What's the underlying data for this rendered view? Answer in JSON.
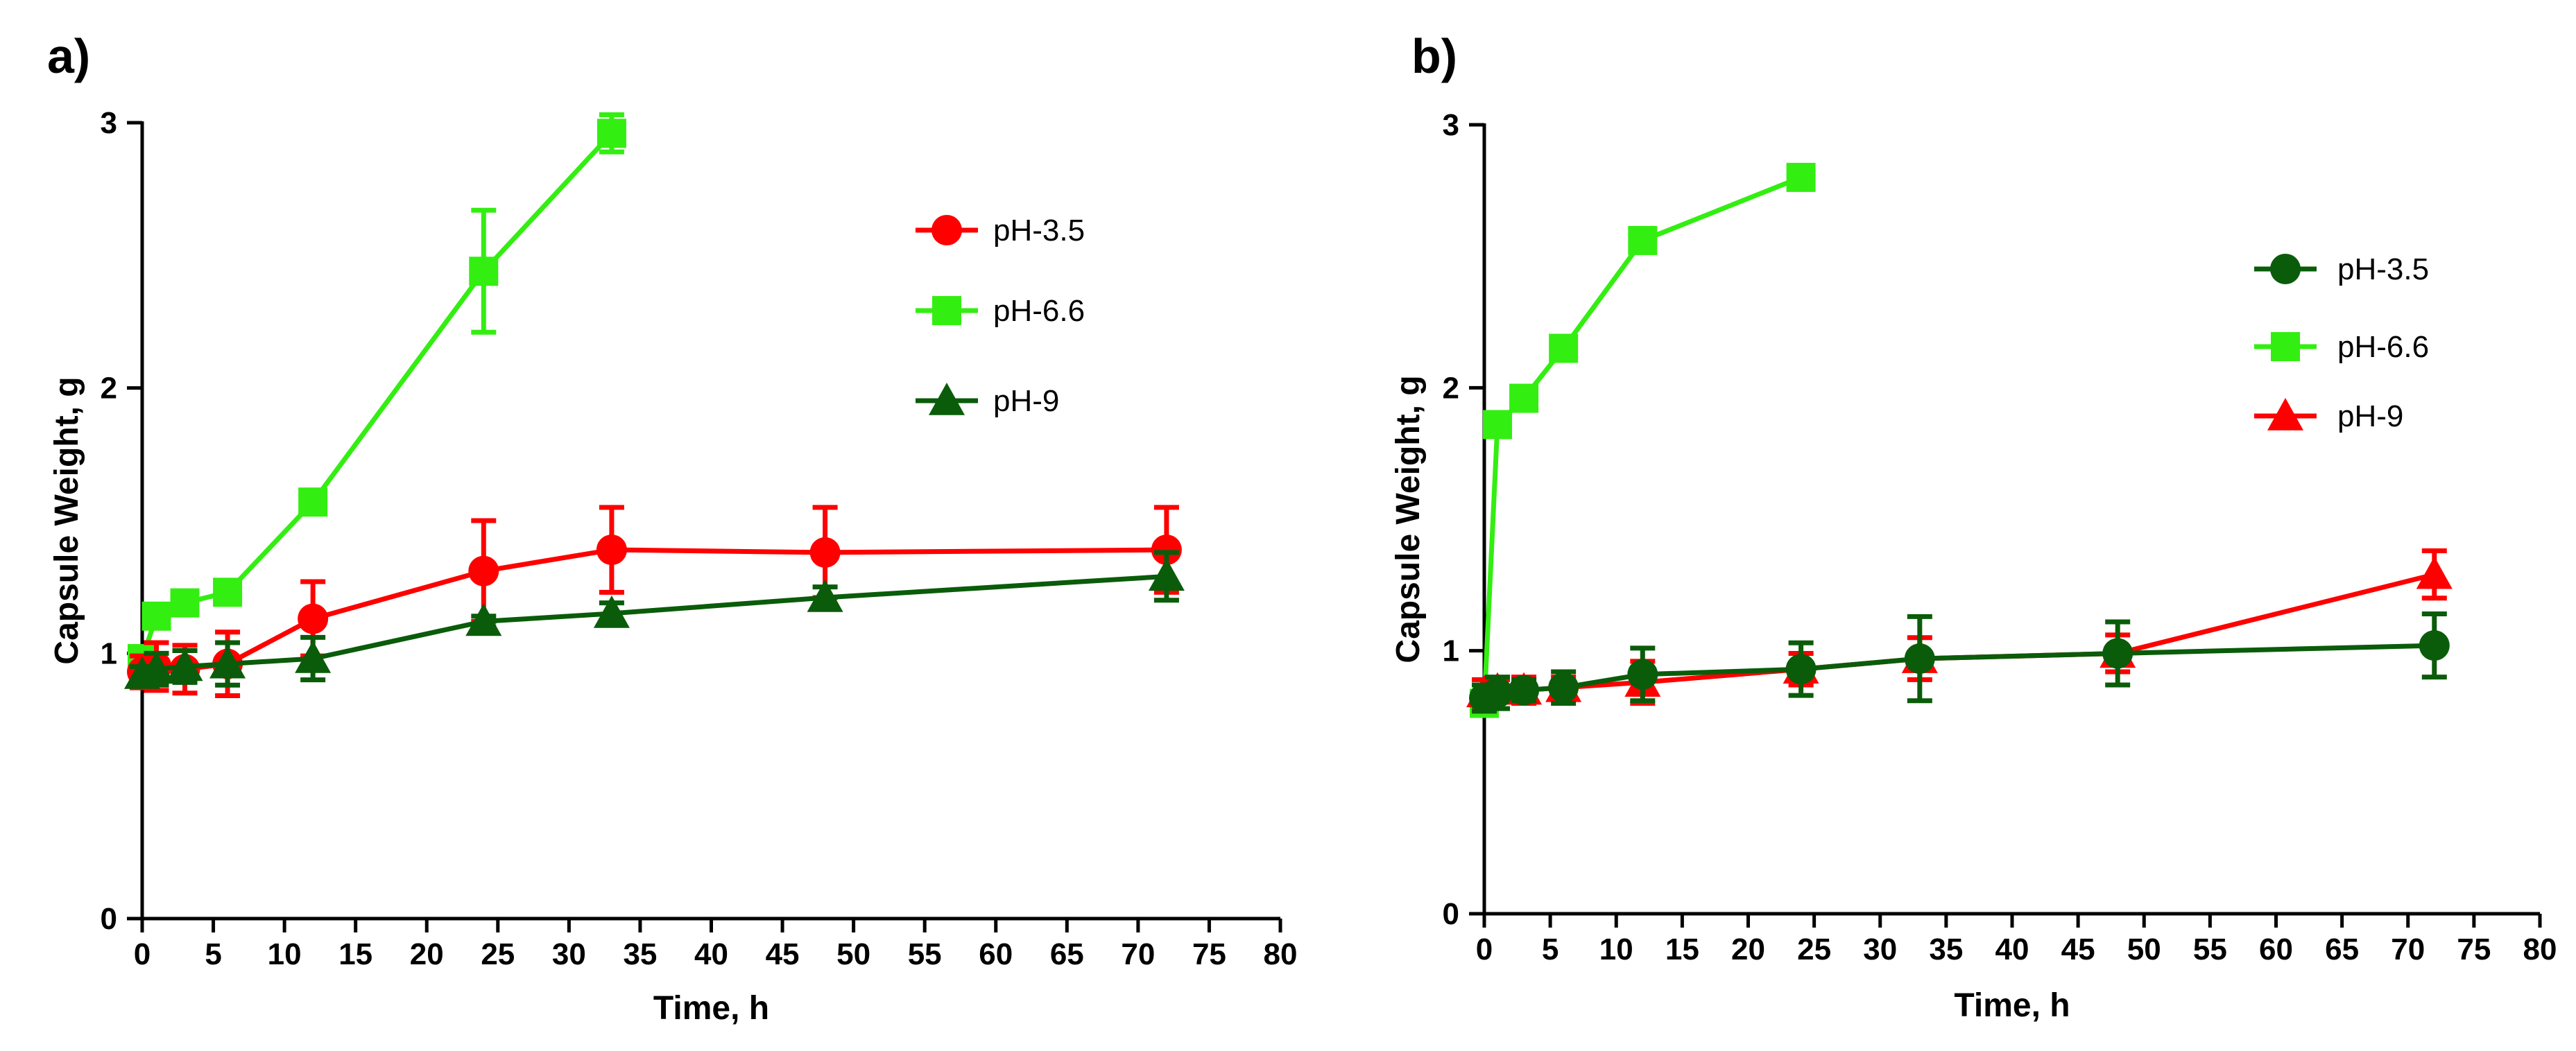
{
  "chart_data": [
    {
      "type": "line",
      "panel_label": "a)",
      "xlabel": "Time, h",
      "ylabel": "Capsule Weight, g",
      "xlim": [
        0,
        80
      ],
      "ylim": [
        0,
        3
      ],
      "x_ticks": [
        "0",
        "5",
        "10",
        "15",
        "20",
        "25",
        "30",
        "35",
        "40",
        "45",
        "50",
        "55",
        "60",
        "65",
        "70",
        "75",
        "80"
      ],
      "y_ticks": [
        "0",
        "1",
        "2",
        "3"
      ],
      "legend_position": "top-right",
      "series": [
        {
          "name": "pH-3.5",
          "color": "#ff0000",
          "marker": "circle",
          "draw_order": 2,
          "x": [
            0,
            1,
            3,
            6,
            12,
            24,
            33,
            48,
            72
          ],
          "y": [
            0.93,
            0.95,
            0.94,
            0.96,
            1.13,
            1.31,
            1.39,
            1.38,
            1.39
          ],
          "err": [
            0.06,
            0.09,
            0.09,
            0.12,
            0.14,
            0.19,
            0.16,
            0.17,
            0.16
          ]
        },
        {
          "name": "pH-6.6",
          "color": "#33ee11",
          "marker": "square",
          "draw_order": 1,
          "x": [
            0,
            1,
            3,
            6,
            12,
            24,
            33
          ],
          "y": [
            0.98,
            1.14,
            1.19,
            1.23,
            1.57,
            2.44,
            2.96
          ],
          "err": [
            0.03,
            0.04,
            0.02,
            0.02,
            0.02,
            0.23,
            0.07
          ]
        },
        {
          "name": "pH-9",
          "color": "#0a5c0a",
          "marker": "triangle",
          "draw_order": 3,
          "x": [
            0,
            1,
            3,
            6,
            12,
            24,
            33,
            48,
            72
          ],
          "y": [
            0.92,
            0.94,
            0.95,
            0.96,
            0.98,
            1.12,
            1.15,
            1.21,
            1.29
          ],
          "err": [
            0.03,
            0.06,
            0.06,
            0.08,
            0.08,
            0.02,
            0.04,
            0.04,
            0.09
          ]
        }
      ]
    },
    {
      "type": "line",
      "panel_label": "b)",
      "xlabel": "Time, h",
      "ylabel": "Capsule Weight, g",
      "xlim": [
        0,
        80
      ],
      "ylim": [
        0,
        3
      ],
      "x_ticks": [
        "0",
        "5",
        "10",
        "15",
        "20",
        "25",
        "30",
        "35",
        "40",
        "45",
        "50",
        "55",
        "60",
        "65",
        "70",
        "75",
        "80"
      ],
      "y_ticks": [
        "0",
        "1",
        "2",
        "3"
      ],
      "legend_position": "top-right",
      "series": [
        {
          "name": "pH-3.5",
          "color": "#0a5c0a",
          "marker": "circle",
          "draw_order": 3,
          "x": [
            0,
            1,
            3,
            6,
            12,
            24,
            33,
            48,
            72
          ],
          "y": [
            0.82,
            0.84,
            0.85,
            0.86,
            0.91,
            0.93,
            0.97,
            0.99,
            1.02
          ],
          "err": [
            0.05,
            0.06,
            0.04,
            0.06,
            0.1,
            0.1,
            0.16,
            0.12,
            0.12
          ]
        },
        {
          "name": "pH-6.6",
          "color": "#33ee11",
          "marker": "square",
          "draw_order": 1,
          "x": [
            0,
            1,
            3,
            6,
            12,
            24
          ],
          "y": [
            0.8,
            1.86,
            1.96,
            2.15,
            2.56,
            2.8
          ],
          "err": [
            0.02,
            0.02,
            0.04,
            0.03,
            0.02,
            0.02
          ]
        },
        {
          "name": "pH-9",
          "color": "#ff0000",
          "marker": "triangle",
          "draw_order": 2,
          "x": [
            0,
            1,
            3,
            6,
            12,
            24,
            33,
            48,
            72
          ],
          "y": [
            0.84,
            0.85,
            0.85,
            0.86,
            0.88,
            0.93,
            0.97,
            0.99,
            1.29
          ],
          "err": [
            0.05,
            0.04,
            0.05,
            0.04,
            0.08,
            0.06,
            0.08,
            0.07,
            0.09
          ]
        }
      ]
    }
  ]
}
